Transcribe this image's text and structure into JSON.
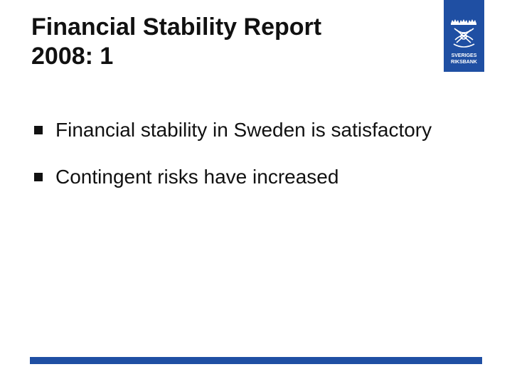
{
  "slide": {
    "title_line1": "Financial Stability Report",
    "title_line2": "2008: 1"
  },
  "logo": {
    "text_line1": "SVERIGES",
    "text_line2": "RIKSBANK",
    "icon": "riksbank-crest-icon"
  },
  "bullets": [
    {
      "text": "Financial stability in Sweden is satisfactory"
    },
    {
      "text": "Contingent risks have increased"
    }
  ],
  "colors": {
    "accent": "#1f4fa3",
    "text": "#111111",
    "background": "#ffffff"
  }
}
